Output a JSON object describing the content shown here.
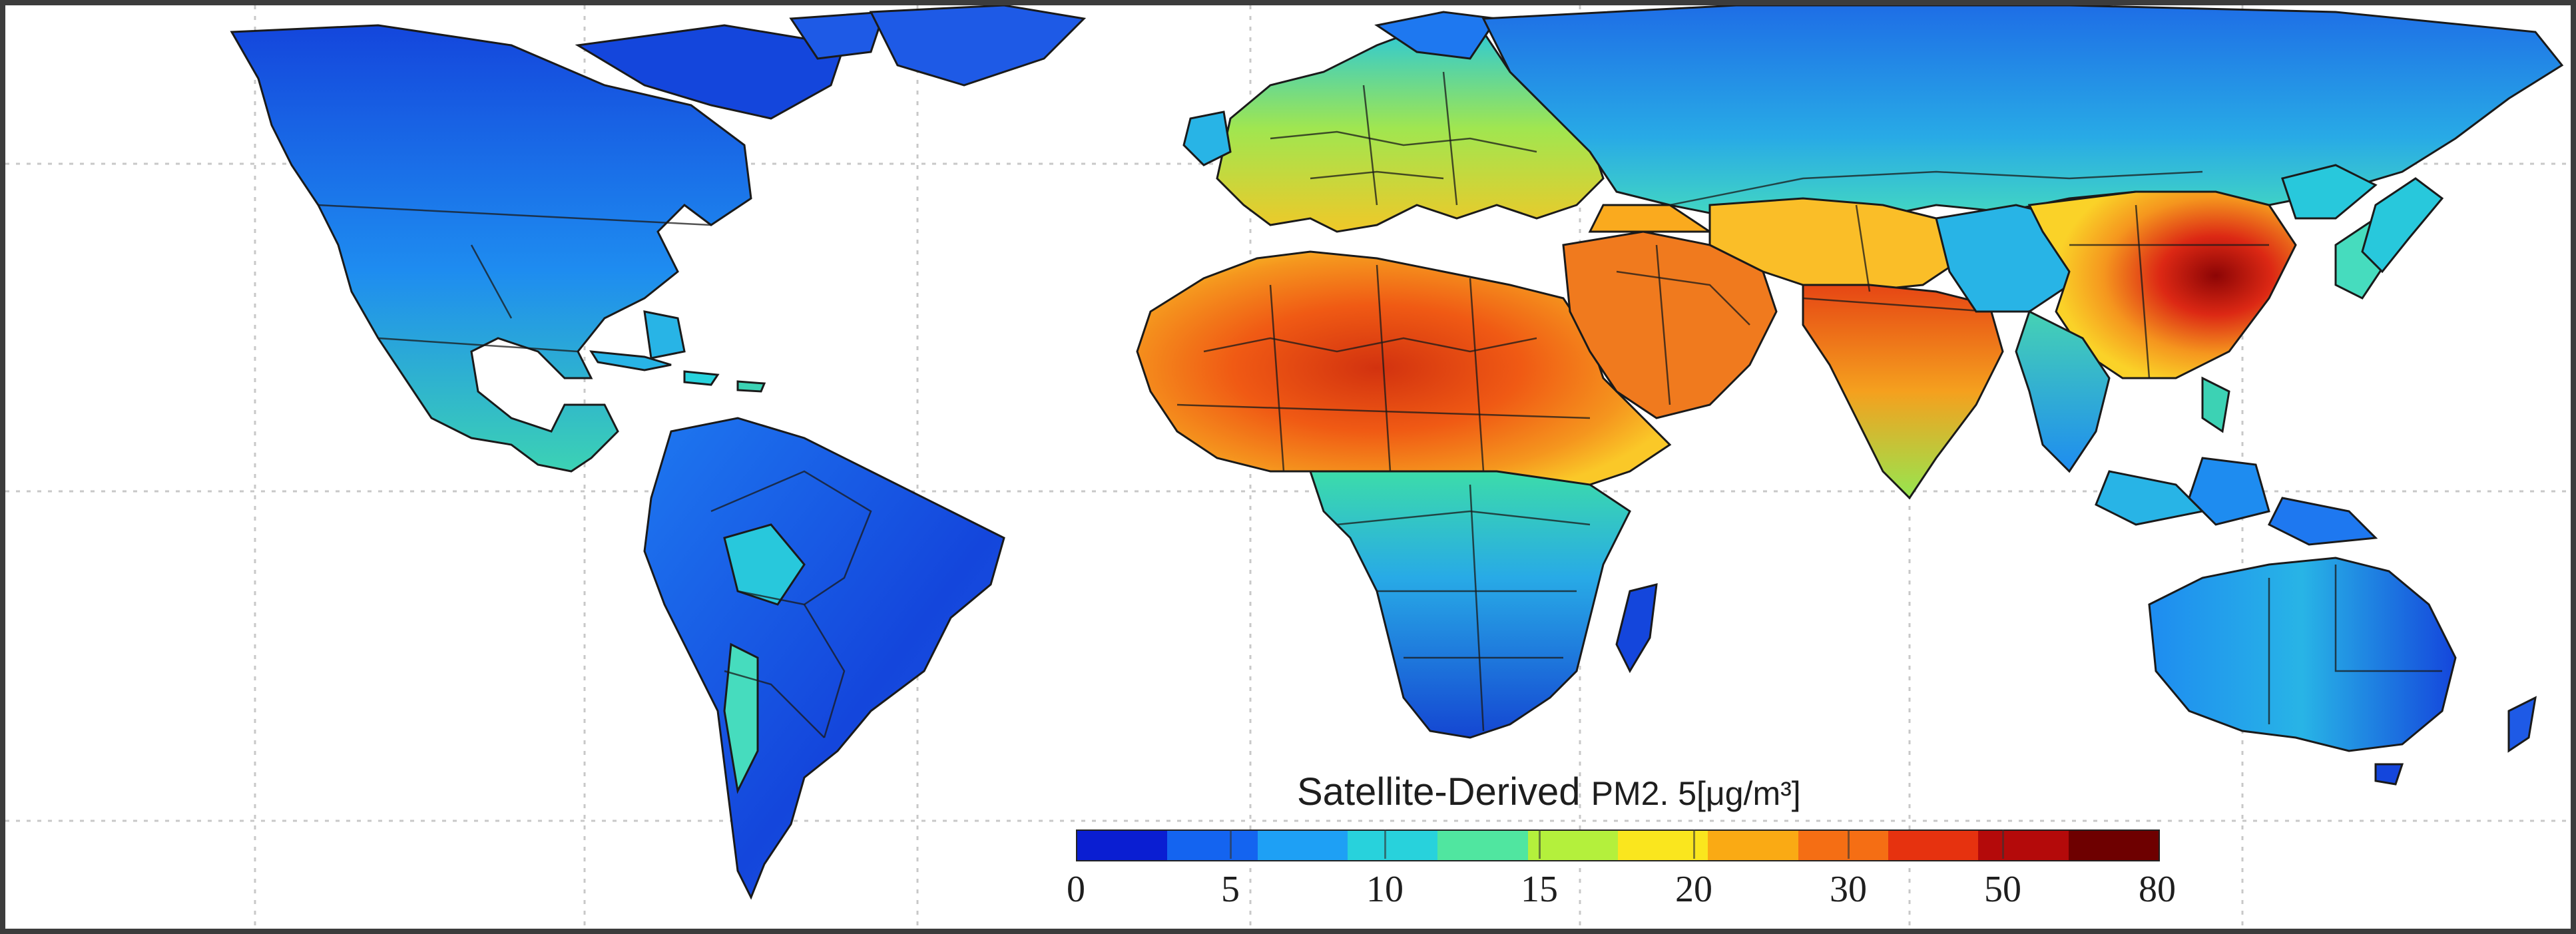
{
  "legend": {
    "title_main": "Satellite-Derived ",
    "title_unit": "PM2. 5[μg/m³]",
    "ticks": [
      "0",
      "5",
      "10",
      "15",
      "20",
      "30",
      "50",
      "80"
    ],
    "colors": [
      "#0a1ed2",
      "#1464f0",
      "#1ea0f5",
      "#28d2dc",
      "#50e6a0",
      "#b4f03c",
      "#fae61e",
      "#faaa14",
      "#f56e14",
      "#e6320f",
      "#b40a0a",
      "#6e0000"
    ]
  },
  "palette": {
    "very_low": "#1432d2",
    "low": "#1e78f0",
    "low_mid": "#28b4e6",
    "mid": "#32d2c8",
    "mid_high": "#96e650",
    "high": "#f0dc28",
    "higher": "#f59628",
    "very_high": "#e6461e",
    "extreme": "#a00a0a"
  }
}
